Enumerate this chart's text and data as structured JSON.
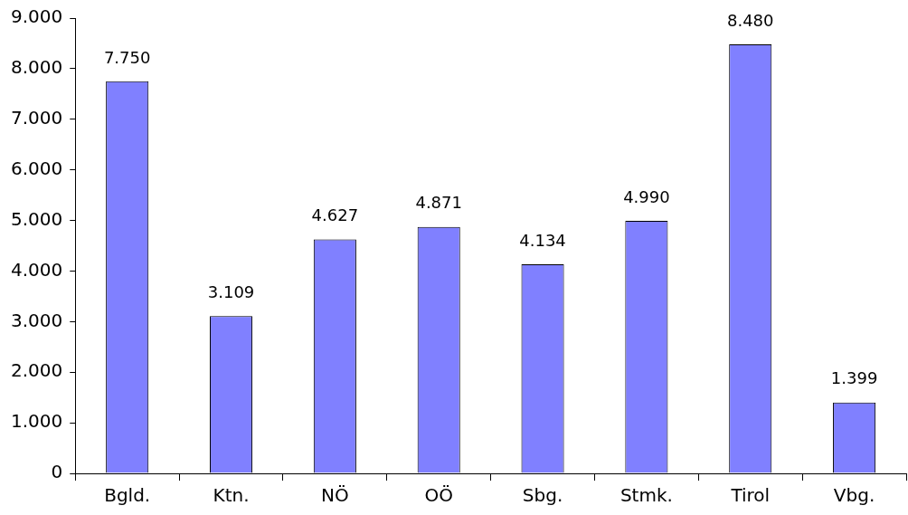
{
  "chart_data": {
    "type": "bar",
    "categories": [
      "Bgld.",
      "Ktn.",
      "NÖ",
      "OÖ",
      "Sbg.",
      "Stmk.",
      "Tirol",
      "Vbg."
    ],
    "values": [
      7750,
      3109,
      4627,
      4871,
      4134,
      4990,
      8480,
      1399
    ],
    "value_labels": [
      "7.750",
      "3.109",
      "4.627",
      "4.871",
      "4.134",
      "4.990",
      "8.480",
      "1.399"
    ],
    "color": "#8080ff",
    "ylim": [
      0,
      9000
    ],
    "yticks": [
      {
        "value": 0,
        "label": "0"
      },
      {
        "value": 1000,
        "label": "1.000"
      },
      {
        "value": 2000,
        "label": "2.000"
      },
      {
        "value": 3000,
        "label": "3.000"
      },
      {
        "value": 4000,
        "label": "4.000"
      },
      {
        "value": 5000,
        "label": "5.000"
      },
      {
        "value": 6000,
        "label": "6.000"
      },
      {
        "value": 7000,
        "label": "7.000"
      },
      {
        "value": 8000,
        "label": "8.000"
      },
      {
        "value": 9000,
        "label": "9.000"
      }
    ],
    "grid": false,
    "legend": false
  }
}
